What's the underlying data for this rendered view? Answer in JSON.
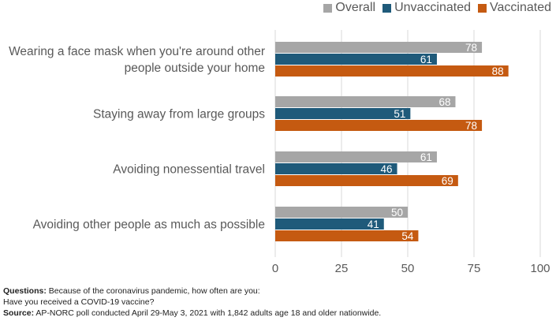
{
  "chart_data": {
    "type": "bar",
    "orientation": "horizontal",
    "categories": [
      [
        "Wearing a face mask when you're around other",
        "people outside your home"
      ],
      [
        "Staying away from large groups"
      ],
      [
        "Avoiding nonessential travel"
      ],
      [
        "Avoiding other people as much as possible"
      ]
    ],
    "series": [
      {
        "name": "Overall",
        "color": "#a6a6a6",
        "values": [
          78,
          68,
          61,
          50
        ]
      },
      {
        "name": "Unvaccinated",
        "color": "#1f5a7a",
        "values": [
          61,
          51,
          46,
          41
        ]
      },
      {
        "name": "Vaccinated",
        "color": "#c55a11",
        "values": [
          88,
          78,
          69,
          54
        ]
      }
    ],
    "xlim": [
      0,
      100
    ],
    "xticks": [
      "0",
      "25",
      "50",
      "75",
      "100"
    ],
    "grid": true,
    "legend_position": "top-right",
    "data_labels": true
  },
  "notes": {
    "questions_label": "Questions:",
    "questions_line1": " Because of the coronavirus pandemic, how often are you:",
    "questions_line2": "Have you received a COVID-19 vaccine?",
    "source_label": "Source:",
    "source_text": " AP-NORC poll conducted April 29-May 3, 2021 with 1,842 adults age 18 and older nationwide."
  }
}
